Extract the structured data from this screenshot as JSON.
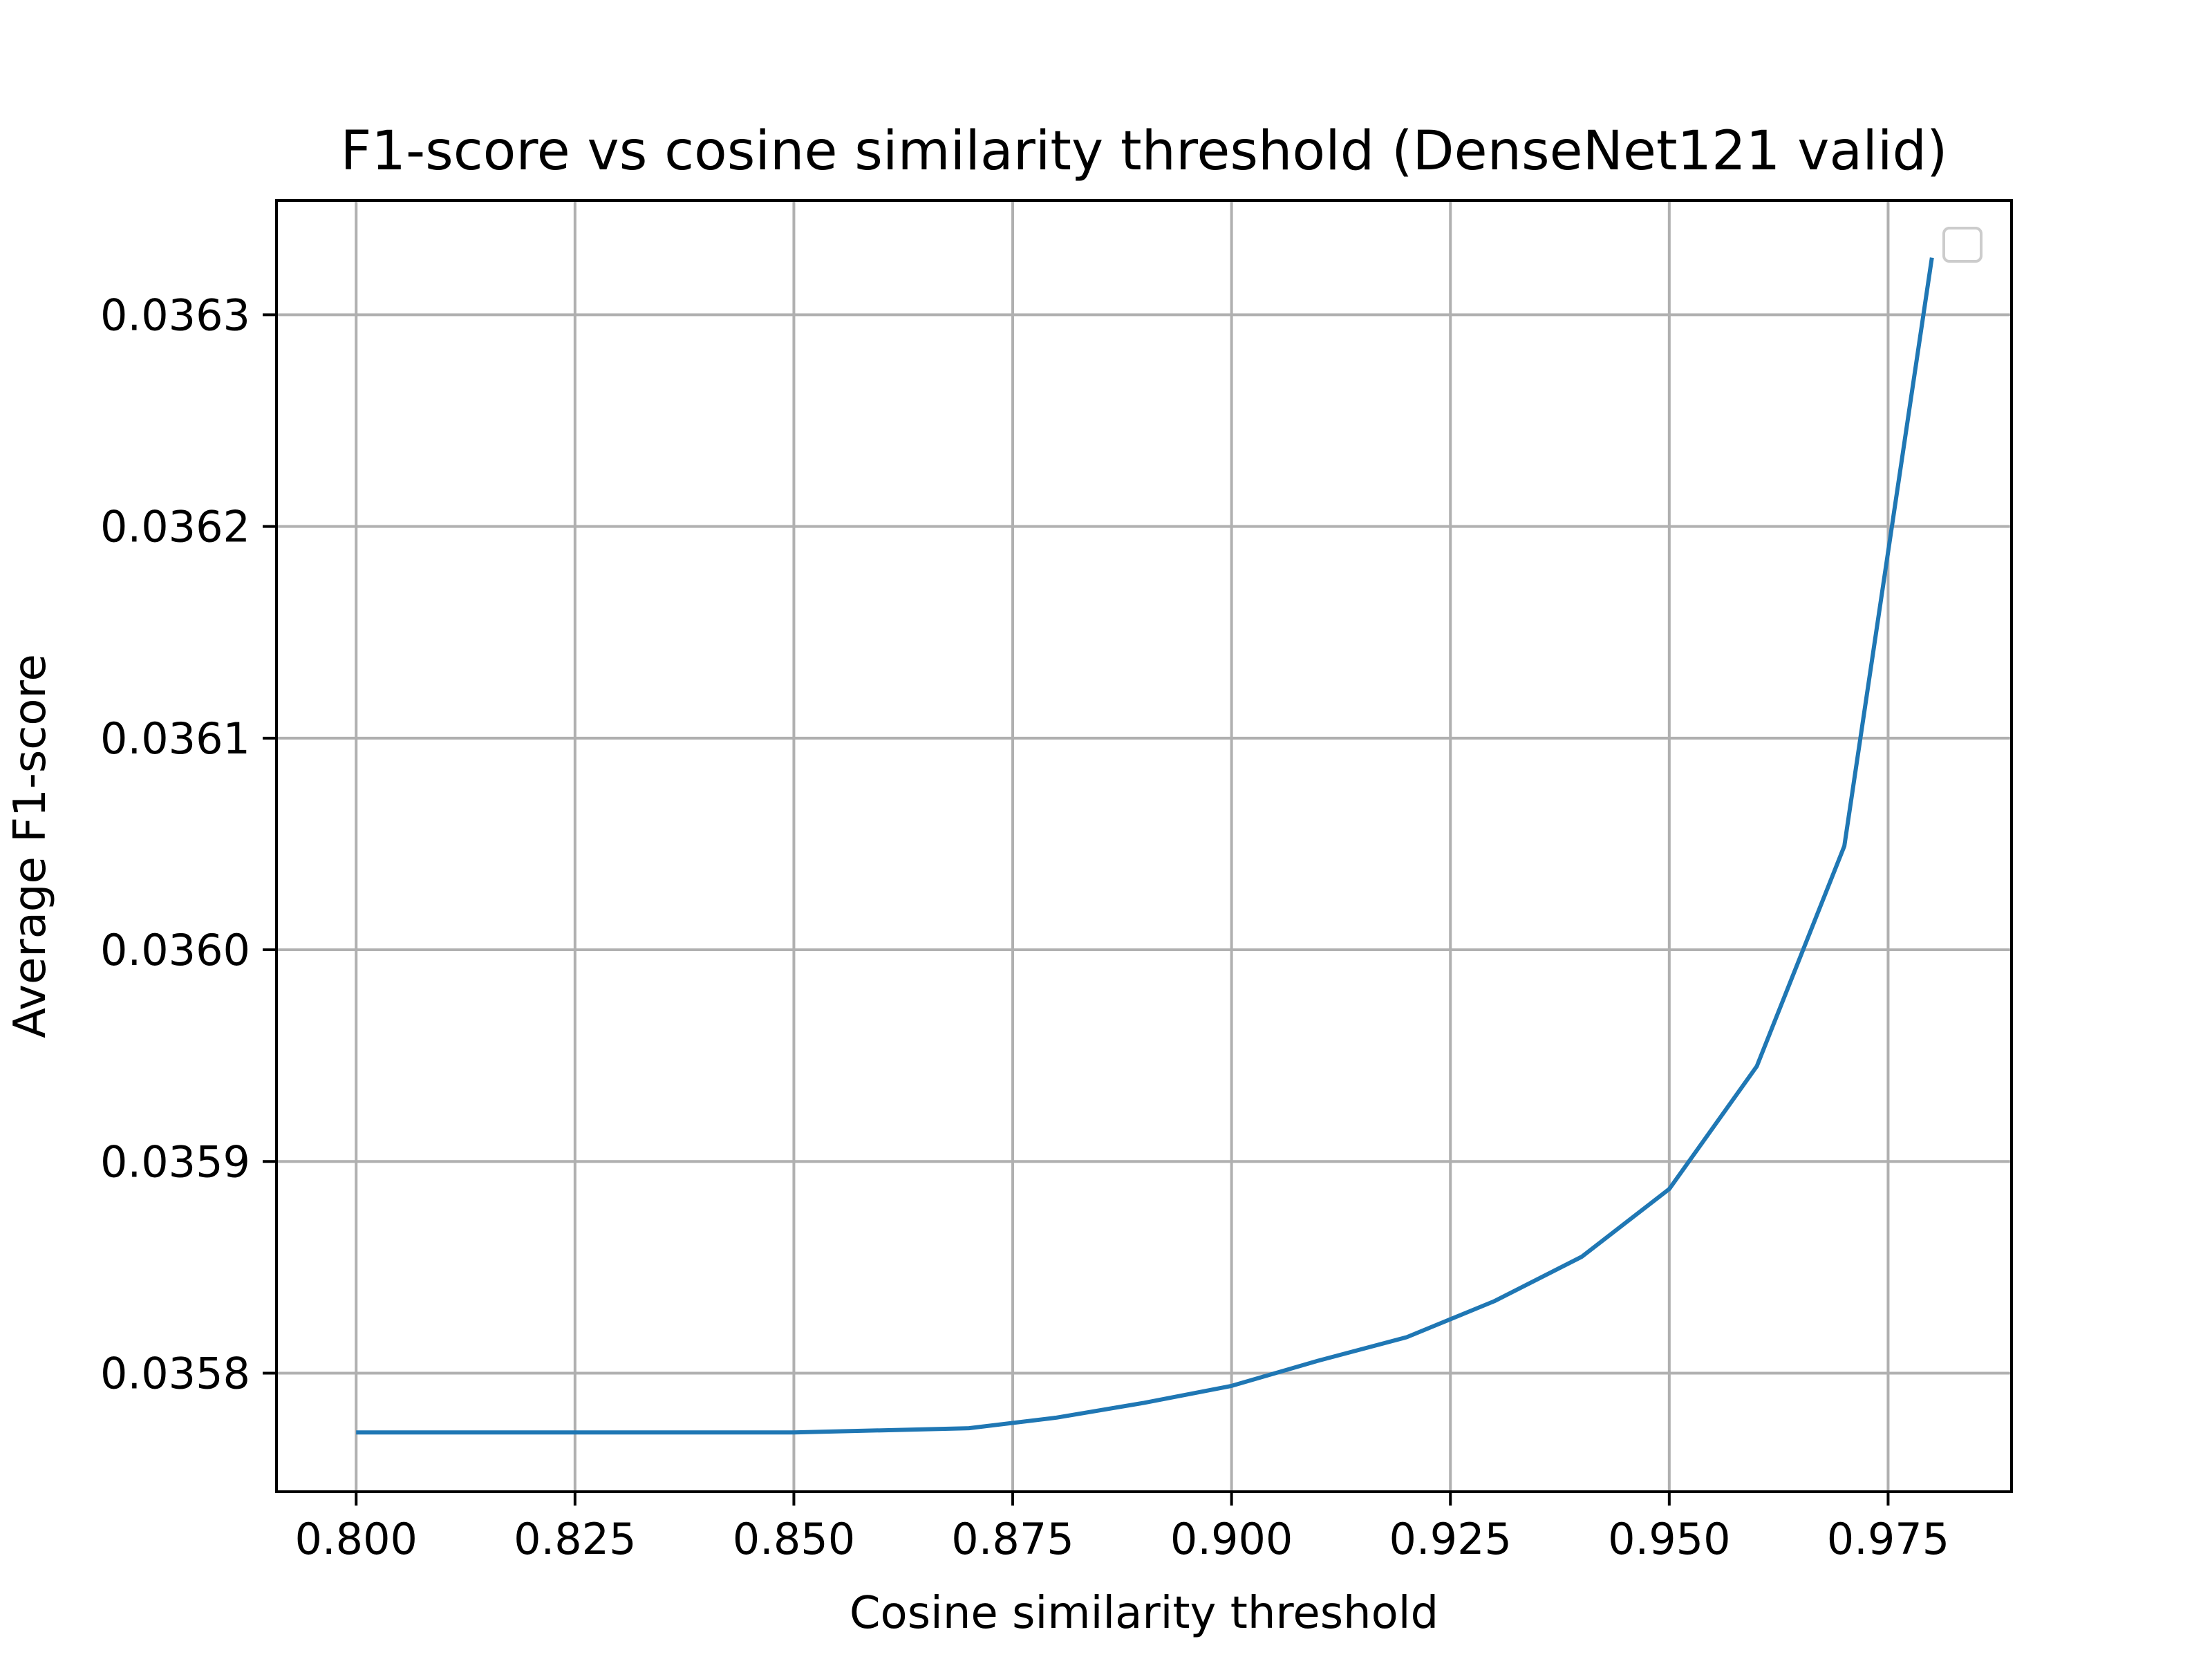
{
  "chart_data": {
    "type": "line",
    "title": "F1-score vs cosine similarity threshold (DenseNet121 valid)",
    "xlabel": "Cosine similarity threshold",
    "ylabel": "Average F1-score",
    "xlim": [
      0.7909,
      0.9891
    ],
    "ylim": [
      0.035744,
      0.036354
    ],
    "xticks": [
      0.8,
      0.825,
      0.85,
      0.875,
      0.9,
      0.925,
      0.95,
      0.975
    ],
    "xtick_labels": [
      "0.800",
      "0.825",
      "0.850",
      "0.875",
      "0.900",
      "0.925",
      "0.950",
      "0.975"
    ],
    "yticks": [
      0.0358,
      0.0359,
      0.036,
      0.0361,
      0.0362,
      0.0363
    ],
    "ytick_labels": [
      "0.0358",
      "0.0359",
      "0.0360",
      "0.0361",
      "0.0362",
      "0.0363"
    ],
    "grid": true,
    "legend": "top-right",
    "series": [
      {
        "color": "#1f77b4",
        "x": [
          0.8,
          0.81,
          0.82,
          0.83,
          0.84,
          0.85,
          0.86,
          0.87,
          0.88,
          0.89,
          0.9,
          0.91,
          0.92,
          0.93,
          0.94,
          0.95,
          0.96,
          0.97,
          0.98
        ],
        "y": [
          0.035772,
          0.035772,
          0.035772,
          0.035772,
          0.035772,
          0.035772,
          0.035773,
          0.035774,
          0.035779,
          0.035786,
          0.035794,
          0.035806,
          0.035817,
          0.035834,
          0.035855,
          0.035887,
          0.035945,
          0.036049,
          0.036327
        ]
      }
    ]
  }
}
